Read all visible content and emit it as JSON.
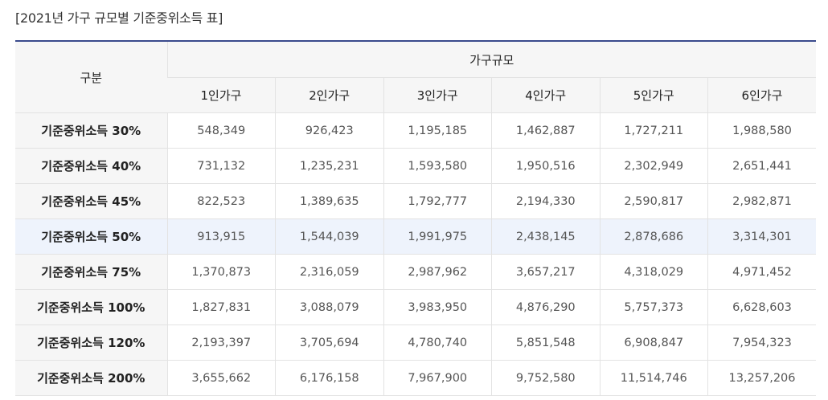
{
  "caption": "[2021년 가구 규모별 기준중위소득 표]",
  "table": {
    "row_header": "구분",
    "group_header": "가구규모",
    "columns": [
      "1인가구",
      "2인가구",
      "3인가구",
      "4인가구",
      "5인가구",
      "6인가구"
    ],
    "rows": [
      {
        "label": "기준중위소득 30%",
        "values": [
          "548,349",
          "926,423",
          "1,195,185",
          "1,462,887",
          "1,727,211",
          "1,988,580"
        ]
      },
      {
        "label": "기준중위소득 40%",
        "values": [
          "731,132",
          "1,235,231",
          "1,593,580",
          "1,950,516",
          "2,302,949",
          "2,651,441"
        ]
      },
      {
        "label": "기준중위소득 45%",
        "values": [
          "822,523",
          "1,389,635",
          "1,792,777",
          "2,194,330",
          "2,590,817",
          "2,982,871"
        ]
      },
      {
        "label": "기준중위소득 50%",
        "values": [
          "913,915",
          "1,544,039",
          "1,991,975",
          "2,438,145",
          "2,878,686",
          "3,314,301"
        ]
      },
      {
        "label": "기준중위소득 75%",
        "values": [
          "1,370,873",
          "2,316,059",
          "2,987,962",
          "3,657,217",
          "4,318,029",
          "4,971,452"
        ]
      },
      {
        "label": "기준중위소득 100%",
        "values": [
          "1,827,831",
          "3,088,079",
          "3,983,950",
          "4,876,290",
          "5,757,373",
          "6,628,603"
        ]
      },
      {
        "label": "기준중위소득 120%",
        "values": [
          "2,193,397",
          "3,705,694",
          "4,780,740",
          "5,851,548",
          "6,908,847",
          "7,954,323"
        ]
      },
      {
        "label": "기준중위소득 200%",
        "values": [
          "3,655,662",
          "6,176,158",
          "7,967,900",
          "9,752,580",
          "11,514,746",
          "13,257,206"
        ]
      }
    ],
    "highlight_color": "#eef3fc",
    "header_bg": "#f6f6f6",
    "top_border_color": "#3a4a8c"
  }
}
